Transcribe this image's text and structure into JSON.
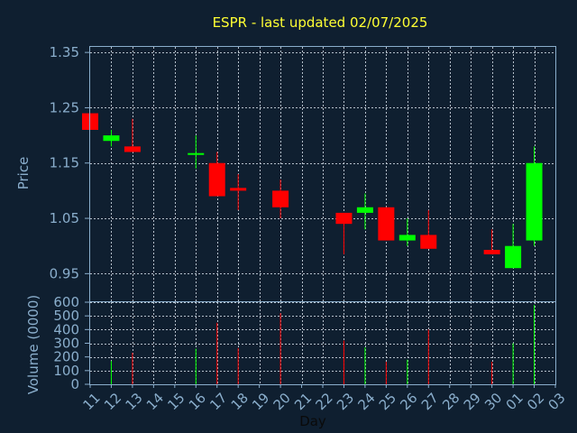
{
  "chart_data": {
    "type": "candlestick",
    "title": "ESPR - last updated 02/07/2025",
    "xlabel": "Day",
    "x_tick_labels": [
      "11",
      "12",
      "13",
      "14",
      "15",
      "16",
      "17",
      "18",
      "19",
      "20",
      "21",
      "22",
      "23",
      "24",
      "25",
      "26",
      "27",
      "28",
      "29",
      "30",
      "01",
      "02",
      "03"
    ],
    "colors": {
      "background": "#0f1f30",
      "axis": "#8aaecc",
      "title": "#ffff33",
      "up": "#00ff00",
      "down": "#ff0000"
    },
    "price_panel": {
      "ylabel": "Price",
      "ylim": [
        0.9,
        1.36
      ],
      "y_ticks": [
        0.95,
        1.05,
        1.15,
        1.25,
        1.35
      ],
      "y_tick_labels": [
        "0.95",
        "1.05",
        "1.15",
        "1.25",
        "1.35"
      ],
      "grid": true
    },
    "volume_panel": {
      "ylabel": "Volume (0000)",
      "ylim": [
        0,
        600
      ],
      "y_ticks": [
        0,
        100,
        200,
        300,
        400,
        500,
        600
      ],
      "y_tick_labels": [
        "0",
        "100",
        "200",
        "300",
        "400",
        "500",
        "600"
      ],
      "grid": true
    },
    "candles": [
      {
        "day": "11",
        "open": 1.24,
        "high": 1.24,
        "low": 1.21,
        "close": 1.21,
        "volume": 0
      },
      {
        "day": "12",
        "open": 1.19,
        "high": 1.21,
        "low": 1.18,
        "close": 1.2,
        "volume": 170
      },
      {
        "day": "13",
        "open": 1.18,
        "high": 1.23,
        "low": 1.17,
        "close": 1.17,
        "volume": 230
      },
      {
        "day": "16",
        "open": 1.167,
        "high": 1.2,
        "low": 1.14,
        "close": 1.168,
        "volume": 260
      },
      {
        "day": "17",
        "open": 1.15,
        "high": 1.17,
        "low": 1.09,
        "close": 1.09,
        "volume": 450
      },
      {
        "day": "18",
        "open": 1.105,
        "high": 1.13,
        "low": 1.065,
        "close": 1.1,
        "volume": 265
      },
      {
        "day": "20",
        "open": 1.1,
        "high": 1.12,
        "low": 1.05,
        "close": 1.07,
        "volume": 520
      },
      {
        "day": "23",
        "open": 1.06,
        "high": 1.06,
        "low": 0.985,
        "close": 1.04,
        "volume": 320
      },
      {
        "day": "24",
        "open": 1.06,
        "high": 1.095,
        "low": 1.03,
        "close": 1.07,
        "volume": 270
      },
      {
        "day": "25",
        "open": 1.07,
        "high": 1.07,
        "low": 1.01,
        "close": 1.01,
        "volume": 165
      },
      {
        "day": "26",
        "open": 1.01,
        "high": 1.05,
        "low": 1.0,
        "close": 1.02,
        "volume": 180
      },
      {
        "day": "27",
        "open": 1.02,
        "high": 1.065,
        "low": 0.995,
        "close": 0.995,
        "volume": 400
      },
      {
        "day": "30",
        "open": 0.993,
        "high": 1.03,
        "low": 0.985,
        "close": 0.985,
        "volume": 165
      },
      {
        "day": "01",
        "open": 0.96,
        "high": 1.04,
        "low": 0.96,
        "close": 1.0,
        "volume": 300
      },
      {
        "day": "02",
        "open": 1.01,
        "high": 1.18,
        "low": 1.0,
        "close": 1.15,
        "volume": 580
      }
    ]
  }
}
